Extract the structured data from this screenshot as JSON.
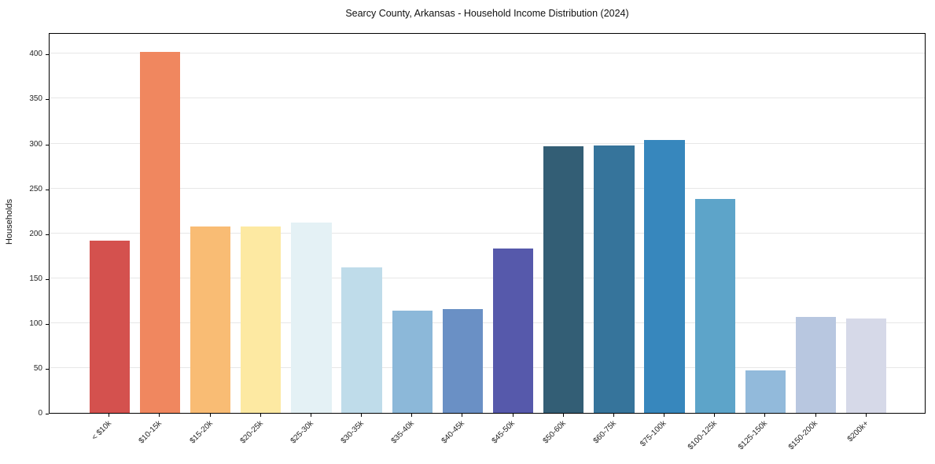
{
  "title": "Searcy County, Arkansas - Household Income Distribution (2024)",
  "chart_data": {
    "type": "bar",
    "title": "Searcy County, Arkansas - Household Income Distribution (2024)",
    "xlabel": "",
    "ylabel": "Households",
    "categories": [
      "< $10k",
      "$10-15k",
      "$15-20k",
      "$20-25k",
      "$25-30k",
      "$30-35k",
      "$35-40k",
      "$40-45k",
      "$45-50k",
      "$50-60k",
      "$60-75k",
      "$75-100k",
      "$100-125k",
      "$125-150k",
      "$150-200k",
      "$200k+"
    ],
    "values": [
      192,
      402,
      208,
      208,
      212,
      162,
      114,
      116,
      183,
      297,
      298,
      304,
      238,
      47,
      107,
      105
    ],
    "bar_colors": [
      "#d4514e",
      "#f0875f",
      "#f9bc74",
      "#fde9a2",
      "#e4f1f5",
      "#bfdcea",
      "#8cb8d9",
      "#6a90c5",
      "#5659ab",
      "#335e75",
      "#36749b",
      "#3787bd",
      "#5da4c9",
      "#92badb",
      "#b8c7e0",
      "#d6d9e8"
    ],
    "yticks": [
      0,
      50,
      100,
      150,
      200,
      250,
      300,
      350,
      400
    ],
    "ylim": [
      0,
      424
    ],
    "grid": "horizontal-light",
    "gridline_color": "#e7e7e7",
    "plot_border_color": "#000000",
    "background_color": "#ffffff",
    "x_tick_rotation": 45,
    "legend": "none"
  }
}
